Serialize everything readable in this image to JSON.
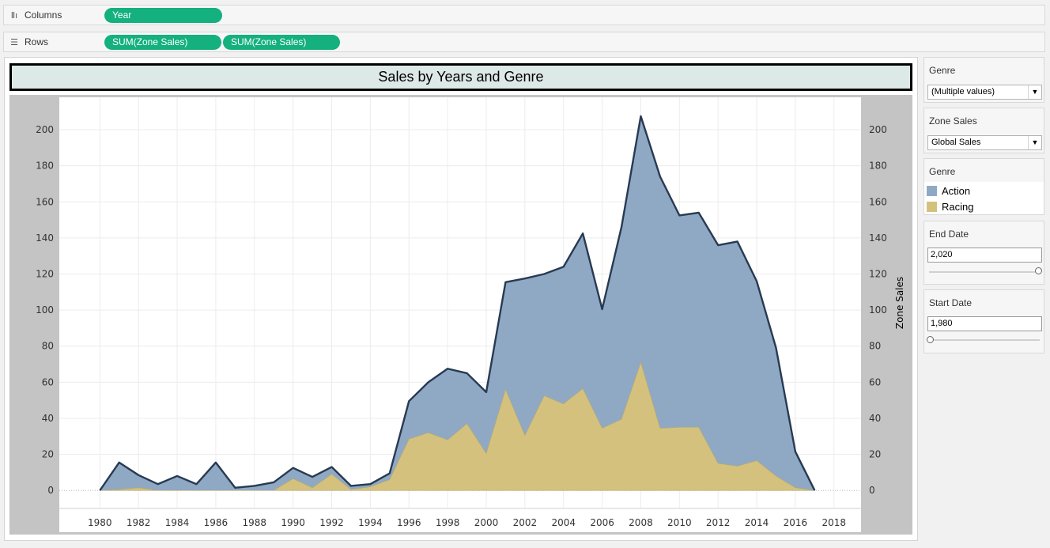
{
  "shelves": {
    "columns": {
      "label": "Columns",
      "icon": "columns-icon",
      "pills": [
        "Year"
      ]
    },
    "rows": {
      "label": "Rows",
      "icon": "rows-icon",
      "pills": [
        "SUM(Zone Sales)",
        "SUM(Zone Sales)"
      ]
    }
  },
  "chart_data": {
    "type": "area",
    "title": "Sales by Years and Genre",
    "xlabel": "",
    "ylabel_right": "Zone Sales",
    "x": [
      1980,
      1981,
      1982,
      1983,
      1984,
      1985,
      1986,
      1987,
      1988,
      1989,
      1990,
      1991,
      1992,
      1993,
      1994,
      1995,
      1996,
      1997,
      1998,
      1999,
      2000,
      2001,
      2002,
      2003,
      2004,
      2005,
      2006,
      2007,
      2008,
      2009,
      2010,
      2011,
      2012,
      2013,
      2014,
      2015,
      2016,
      2017
    ],
    "xticks": [
      1980,
      1982,
      1984,
      1986,
      1988,
      1990,
      1992,
      1994,
      1996,
      1998,
      2000,
      2002,
      2004,
      2006,
      2008,
      2010,
      2012,
      2014,
      2016,
      2018
    ],
    "xlim": [
      1977.9,
      2019.4
    ],
    "ylim": [
      -10,
      218
    ],
    "yticks": [
      0,
      20,
      40,
      60,
      80,
      100,
      120,
      140,
      160,
      180,
      200
    ],
    "stacked": true,
    "series": [
      {
        "name": "Racing",
        "color": "#d4c17e",
        "values": [
          0,
          0.5,
          1.5,
          0,
          0,
          0,
          0,
          0,
          0,
          0,
          6.5,
          1.5,
          9,
          0.5,
          2,
          6,
          28.5,
          32,
          28,
          37,
          20.5,
          56,
          30.5,
          52.5,
          48,
          56.5,
          34.5,
          39.5,
          71,
          34.5,
          35,
          35,
          15,
          13.5,
          16.5,
          8,
          1.5,
          0
        ]
      },
      {
        "name": "Action",
        "color": "#8fa9c5",
        "values": [
          0,
          15,
          7,
          3.5,
          8,
          3.5,
          15.5,
          1.5,
          2.5,
          4.5,
          6,
          6,
          4,
          2,
          1.5,
          3.5,
          21,
          28,
          39.5,
          28,
          34,
          59.5,
          87,
          67.5,
          76,
          86,
          66,
          106.5,
          136.5,
          139.5,
          117.5,
          119,
          121,
          124.5,
          99.5,
          71,
          20,
          0
        ]
      }
    ]
  },
  "filters": {
    "genre_filter": {
      "title": "Genre",
      "value": "(Multiple values)"
    },
    "zone_sales": {
      "title": "Zone Sales",
      "value": "Global Sales"
    },
    "legend": {
      "title": "Genre",
      "items": [
        {
          "label": "Action",
          "color": "#8fa9c5"
        },
        {
          "label": "Racing",
          "color": "#d4c17e"
        }
      ]
    },
    "end_date": {
      "title": "End Date",
      "value": "2,020",
      "position": 1.0
    },
    "start_date": {
      "title": "Start Date",
      "value": "1,980",
      "position": 0.0
    }
  }
}
